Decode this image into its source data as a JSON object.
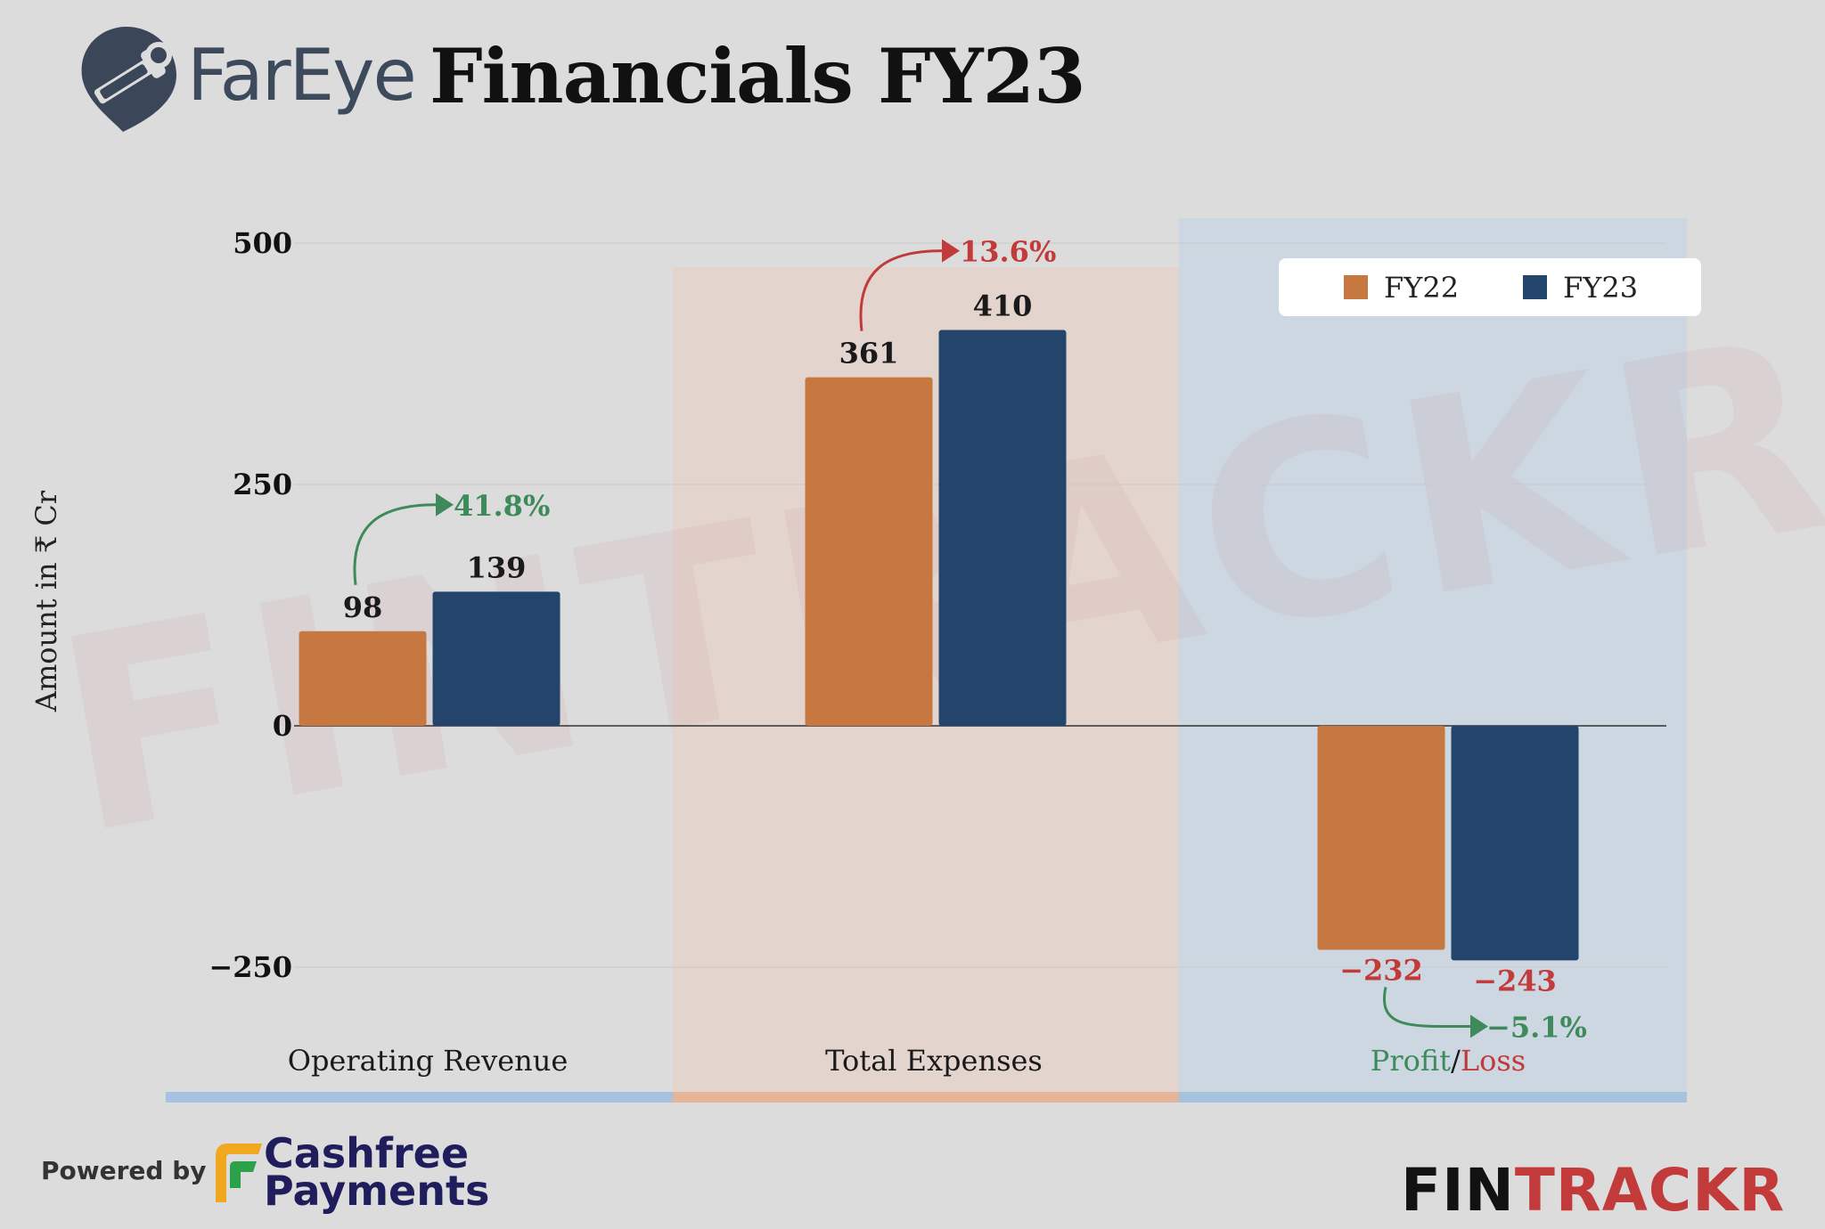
{
  "header": {
    "brand_name": "FarEye",
    "title": "Financials FY23"
  },
  "chart_data": {
    "type": "bar",
    "categories": [
      "Operating Revenue",
      "Total Expenses",
      "Profit/Loss"
    ],
    "category_label_parts": [
      [
        "Operating Revenue"
      ],
      [
        "Total Expenses"
      ],
      [
        "Profit",
        "/",
        "Loss"
      ]
    ],
    "series": [
      {
        "name": "FY22",
        "values": [
          98,
          361,
          -232
        ],
        "color": "#c77841"
      },
      {
        "name": "FY23",
        "values": [
          139,
          410,
          -243
        ],
        "color": "#24456b"
      }
    ],
    "data_labels": [
      [
        "98",
        "139"
      ],
      [
        "361",
        "410"
      ],
      [
        "-232",
        "-243"
      ]
    ],
    "changes": [
      "41.8%",
      "13.6%",
      "-5.1%"
    ],
    "change_colors": [
      "#3e8a5a",
      "#c23a3a",
      "#3e8a5a"
    ],
    "ylabel": "Amount in ₹ Cr",
    "yticks": [
      500,
      250,
      0,
      -250
    ],
    "ylim": [
      -300,
      520
    ],
    "legend": {
      "position": "top-right",
      "entries": [
        "FY22",
        "FY23"
      ]
    },
    "grid": true,
    "colors": {
      "positive": "#3e8a5a",
      "negative": "#c23a3a",
      "label_default": "#1a1a1a",
      "band_blue": "#a7c2dc",
      "band_orange": "#e5b599"
    },
    "watermark": "FINTRACKR"
  },
  "footer": {
    "powered_by": "Powered by",
    "sponsor_line1": "Cashfree",
    "sponsor_line2": "Payments",
    "logo_part1": "FIN",
    "logo_part2": "TRACKR"
  }
}
